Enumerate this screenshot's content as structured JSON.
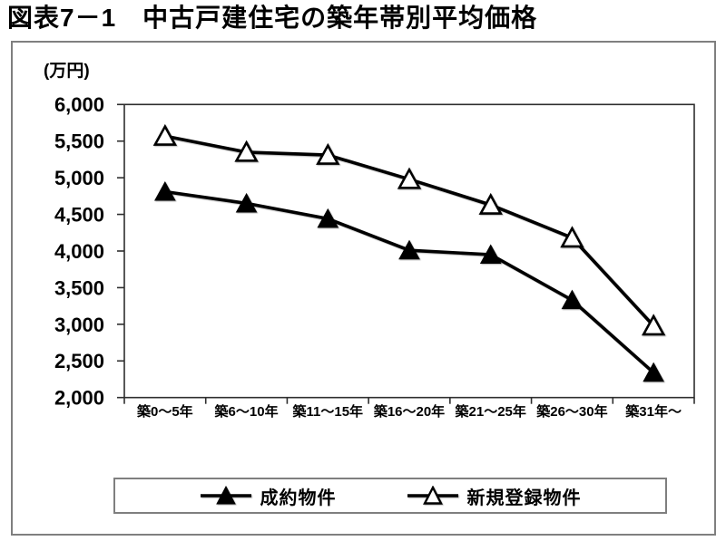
{
  "title": "図表7－1　中古戸建住宅の築年帯別平均価格",
  "chart_data": {
    "type": "line",
    "unit_label": "(万円)",
    "categories": [
      "築0～5年",
      "築6～10年",
      "築11～15年",
      "築16～20年",
      "築21～25年",
      "築26～30年",
      "築31年～"
    ],
    "series": [
      {
        "name": "成約物件",
        "marker": "triangle-filled",
        "values": [
          4810,
          4650,
          4440,
          4010,
          3950,
          3330,
          2340
        ]
      },
      {
        "name": "新規登録物件",
        "marker": "triangle-open",
        "values": [
          5570,
          5350,
          5310,
          4980,
          4630,
          4180,
          2980
        ]
      }
    ],
    "ylim": [
      2000,
      6000
    ],
    "ytick_step": 500,
    "ytick_labels": [
      "6,000",
      "5,500",
      "5,000",
      "4,500",
      "4,000",
      "3,500",
      "3,000",
      "2,500",
      "2,000"
    ],
    "grid": false,
    "legend_position": "bottom"
  },
  "colors": {
    "series_line": "#000000",
    "marker_fill": "#000000",
    "marker_open_fill": "#ffffff",
    "frame_border": "#7f7f7f",
    "axis": "#2e2e2e",
    "background": "#ffffff",
    "text": "#000000"
  }
}
